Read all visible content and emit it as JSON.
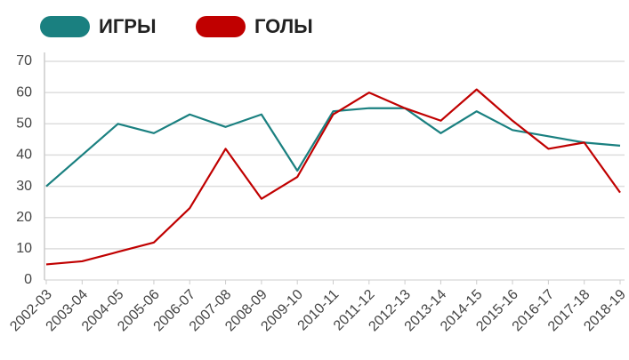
{
  "chart_data": {
    "type": "line",
    "categories": [
      "2002-03",
      "2003-04",
      "2004-05",
      "2005-06",
      "2006-07",
      "2007-08",
      "2008-09",
      "2009-10",
      "2010-11",
      "2011-12",
      "2012-13",
      "2013-14",
      "2014-15",
      "2015-16",
      "2016-17",
      "2017-18",
      "2018-19"
    ],
    "series": [
      {
        "name": "ИГРЫ",
        "color": "#1a8080",
        "values": [
          30,
          40,
          50,
          47,
          53,
          49,
          53,
          35,
          54,
          55,
          55,
          47,
          54,
          48,
          46,
          44,
          43
        ]
      },
      {
        "name": "ГОЛЫ",
        "color": "#c00000",
        "values": [
          5,
          6,
          9,
          12,
          23,
          42,
          26,
          33,
          53,
          60,
          55,
          51,
          61,
          51,
          42,
          44,
          28
        ]
      }
    ],
    "ylim": [
      0,
      70
    ],
    "yticks": [
      0,
      10,
      20,
      30,
      40,
      50,
      60,
      70
    ],
    "grid": true,
    "legend": "top"
  }
}
